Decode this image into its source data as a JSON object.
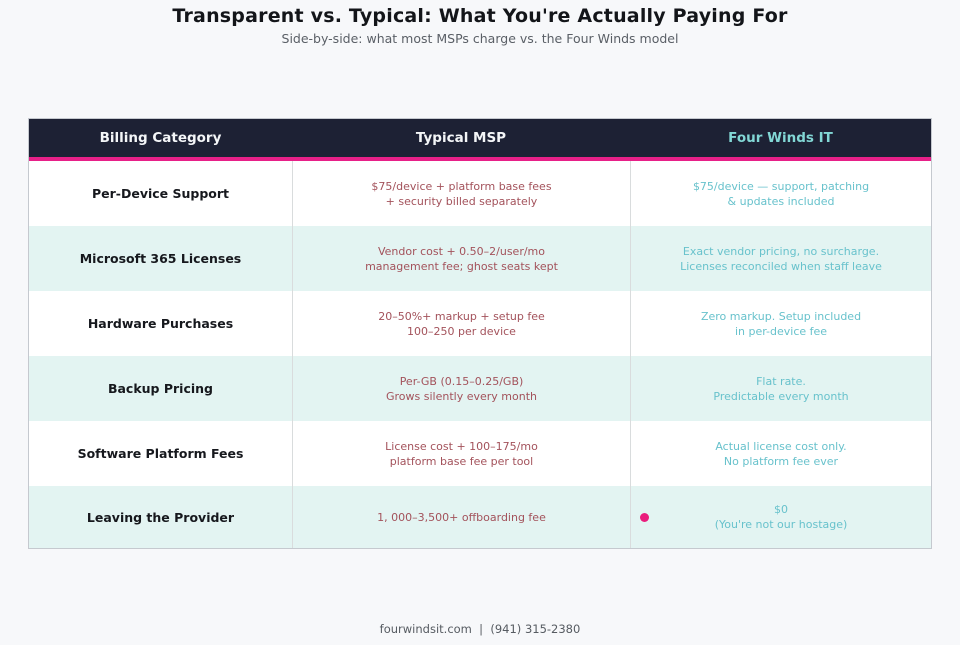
{
  "page": {
    "title": "Transparent vs. Typical: What You're Actually Paying For",
    "subtitle": "Side-by-side: what most MSPs charge vs. the Four Winds model",
    "footer": "fourwindsit.com  |  (941) 315-2380"
  },
  "colors": {
    "page_background": "#f7f8fa",
    "header_background": "#1d2134",
    "header_text": "#f4f6f8",
    "header_fourwinds_text": "#82d7d5",
    "accent_pink": "#e72088",
    "highlight_dot": "#ea1d7d",
    "typical_msp_text": "#a3525b",
    "fourwinds_text": "#68c2cc",
    "alt_row_background": "#e3f4f2",
    "category_text": "#16181d"
  },
  "table": {
    "headers": [
      "Billing Category",
      "Typical MSP",
      "Four Winds IT"
    ],
    "rows": [
      {
        "category": "Per-Device Support",
        "typical": [
          "$75/device + platform base fees",
          "+ security billed separately"
        ],
        "fourwinds": [
          "$75/device — support, patching",
          "& updates included"
        ]
      },
      {
        "category": "Microsoft 365 Licenses",
        "typical": [
          "Vendor cost + 0.50–2/user/mo",
          "management fee; ghost seats kept"
        ],
        "fourwinds": [
          "Exact vendor pricing, no surcharge.",
          "Licenses reconciled when staff leave"
        ]
      },
      {
        "category": "Hardware Purchases",
        "typical": [
          "20–50%+ markup + setup fee",
          "100–250 per device"
        ],
        "fourwinds": [
          "Zero markup. Setup included",
          "in per-device fee"
        ]
      },
      {
        "category": "Backup Pricing",
        "typical": [
          "Per-GB (0.15–0.25/GB)",
          "Grows silently every month"
        ],
        "fourwinds": [
          "Flat rate.",
          "Predictable every month"
        ]
      },
      {
        "category": "Software Platform Fees",
        "typical": [
          "License cost + 100–175/mo",
          "platform base fee per tool"
        ],
        "fourwinds": [
          "Actual license cost only.",
          "No platform fee ever"
        ]
      },
      {
        "category": "Leaving the Provider",
        "typical": [
          "1, 000–3,500+ offboarding fee"
        ],
        "fourwinds": [
          "$0",
          "(You're not our hostage)"
        ]
      }
    ]
  },
  "chart_data": {
    "type": "table",
    "title": "Transparent vs. Typical: What You're Actually Paying For",
    "subtitle": "Side-by-side: what most MSPs charge vs. the Four Winds model",
    "columns": [
      "Billing Category",
      "Typical MSP",
      "Four Winds IT"
    ],
    "rows": [
      [
        "Per-Device Support",
        "$75/device + platform base fees + security billed separately",
        "$75/device — support, patching & updates included"
      ],
      [
        "Microsoft 365 Licenses",
        "Vendor cost + 0.50–2/user/mo management fee; ghost seats kept",
        "Exact vendor pricing, no surcharge. Licenses reconciled when staff leave"
      ],
      [
        "Hardware Purchases",
        "20–50%+ markup + setup fee 100–250 per device",
        "Zero markup. Setup included in per-device fee"
      ],
      [
        "Backup Pricing",
        "Per-GB (0.15–0.25/GB) Grows silently every month",
        "Flat rate. Predictable every month"
      ],
      [
        "Software Platform Fees",
        "License cost + 100–175/mo platform base fee per tool",
        "Actual license cost only. No platform fee ever"
      ],
      [
        "Leaving the Provider",
        "1, 000–3,500+ offboarding fee",
        "$0 (You're not our hostage)"
      ]
    ],
    "footer": "fourwindsit.com  |  (941) 315-2380"
  }
}
